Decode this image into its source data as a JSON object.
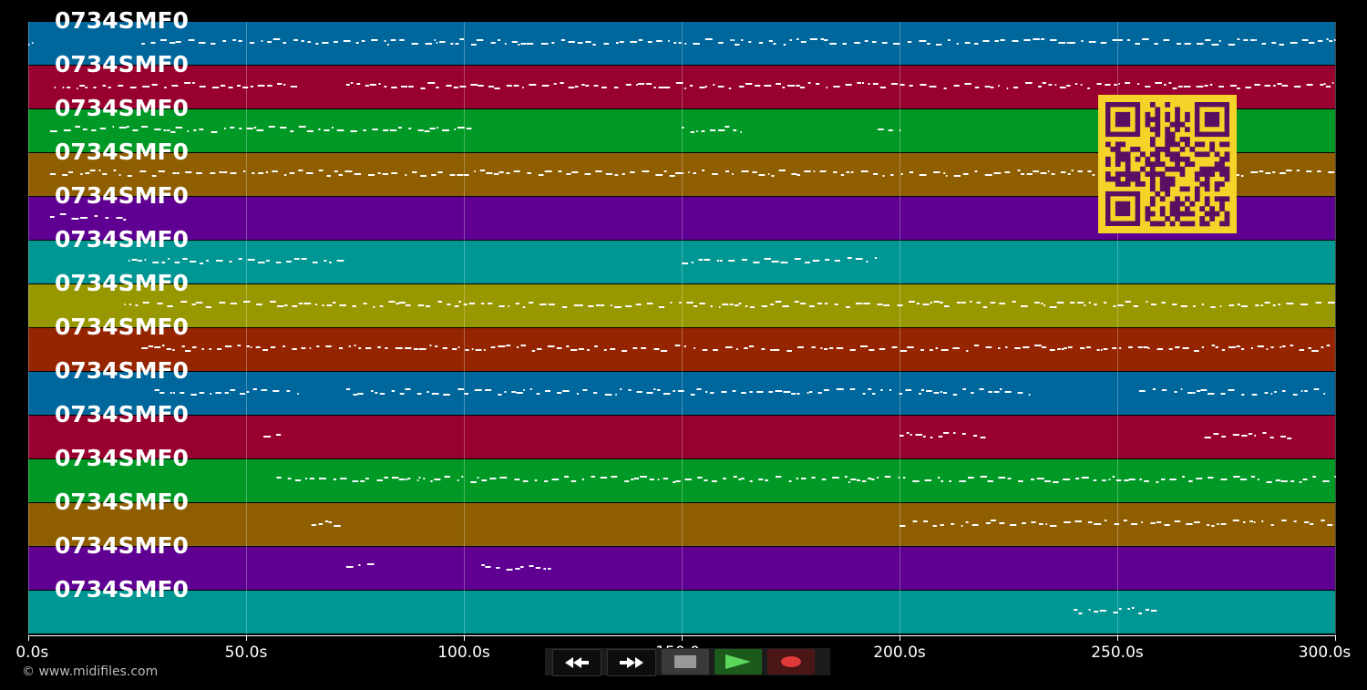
{
  "tracks": [
    {
      "label": "0734SMF0",
      "color": "#00679c"
    },
    {
      "label": "0734SMF0",
      "color": "#98002f"
    },
    {
      "label": "0734SMF0",
      "color": "#009926"
    },
    {
      "label": "0734SMF0",
      "color": "#8e5e00"
    },
    {
      "label": "0734SMF0",
      "color": "#5f0092"
    },
    {
      "label": "0734SMF0",
      "color": "#009693"
    },
    {
      "label": "0734SMF0",
      "color": "#979700"
    },
    {
      "label": "0734SMF0",
      "color": "#952500"
    },
    {
      "label": "0734SMF0",
      "color": "#00679c"
    },
    {
      "label": "0734SMF0",
      "color": "#98002f"
    },
    {
      "label": "0734SMF0",
      "color": "#009926"
    },
    {
      "label": "0734SMF0",
      "color": "#8e5e00"
    },
    {
      "label": "0734SMF0",
      "color": "#5f0092"
    },
    {
      "label": "0734SMF0",
      "color": "#009693"
    }
  ],
  "time_axis": {
    "min": 0,
    "max": 300,
    "ticks": [
      {
        "value": 0,
        "label": "0.0s"
      },
      {
        "value": 50,
        "label": "50.0s"
      },
      {
        "value": 100,
        "label": "100.0s"
      },
      {
        "value": 150,
        "label": "150.0s"
      },
      {
        "value": 200,
        "label": "200.0s"
      },
      {
        "value": 250,
        "label": "250.0s"
      },
      {
        "value": 300,
        "label": "300.0s"
      }
    ]
  },
  "copyright": "© www.midifiles.com",
  "transport": {
    "rewind": "rewind-icon",
    "forward": "fast-forward-icon",
    "stop": "stop-icon",
    "play": "play-icon",
    "record": "record-icon"
  },
  "colors": {
    "qr_background": "#f5d328",
    "qr_foreground": "#5a0f63",
    "note": "#ffffff"
  },
  "note_segments": [
    [
      [
        0,
        1
      ],
      [
        26,
        300
      ]
    ],
    [
      [
        6,
        62
      ],
      [
        73,
        300
      ]
    ],
    [
      [
        5,
        103
      ],
      [
        150,
        165
      ],
      [
        195,
        200
      ]
    ],
    [
      [
        5,
        300
      ]
    ],
    [
      [
        5,
        23
      ]
    ],
    [
      [
        23,
        73
      ],
      [
        150,
        195
      ]
    ],
    [
      [
        22,
        300
      ]
    ],
    [
      [
        26,
        300
      ]
    ],
    [
      [
        29,
        62
      ],
      [
        73,
        205
      ],
      [
        205,
        230
      ],
      [
        255,
        298
      ]
    ],
    [
      [
        54,
        58
      ],
      [
        200,
        220
      ],
      [
        270,
        290
      ]
    ],
    [
      [
        57,
        300
      ]
    ],
    [
      [
        65,
        72
      ],
      [
        200,
        300
      ]
    ],
    [
      [
        73,
        80
      ],
      [
        104,
        120
      ]
    ],
    [
      [
        240,
        260
      ]
    ]
  ]
}
